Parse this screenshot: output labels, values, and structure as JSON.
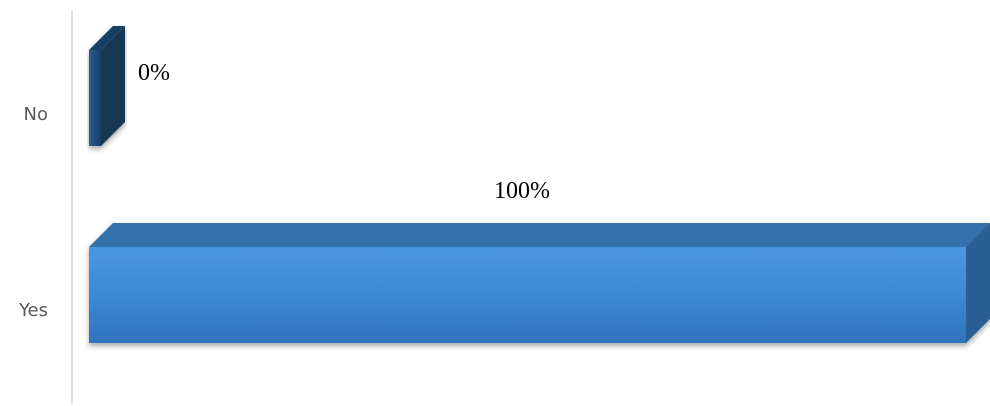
{
  "chart_data": {
    "type": "bar",
    "orientation": "horizontal",
    "style": "3d",
    "categories": [
      "No",
      "Yes"
    ],
    "values": [
      0,
      100
    ],
    "data_labels": [
      "0%",
      "100%"
    ],
    "title": "",
    "xlabel": "",
    "ylabel": "",
    "xlim": [
      0,
      100
    ],
    "grid": false,
    "legend": "none",
    "colors": {
      "No": "#1f4e79",
      "Yes": "#3a87d4",
      "axis": "#bfbfbf",
      "category_label": "#595959",
      "data_label": "#000000"
    }
  }
}
